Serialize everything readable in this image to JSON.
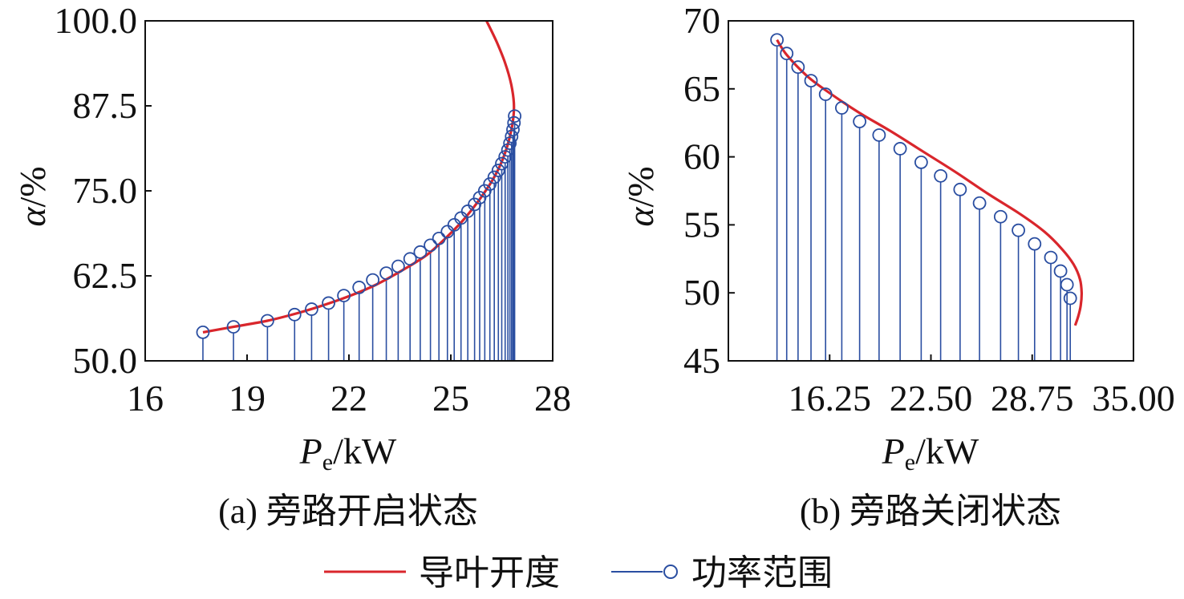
{
  "colors": {
    "curve": "#d9262c",
    "stem": "#2a4ea1",
    "axis": "#111111"
  },
  "legend": {
    "curve_label": "导叶开度",
    "stem_label": "功率范围",
    "curve_icon": "red-line-icon",
    "stem_icon": "blue-stem-circle-icon"
  },
  "chart_data": [
    {
      "type": "line",
      "caption": "(a) 旁路开启状态",
      "ylabel_var": "α",
      "ylabel_unit": "/%",
      "xlabel_var": "P",
      "xlabel_sub": "e",
      "xlabel_unit": "/kW",
      "xlim": [
        16,
        28
      ],
      "ylim": [
        50,
        100
      ],
      "xticks": [
        16,
        19,
        22,
        25,
        28
      ],
      "xtick_labels": [
        "16",
        "19",
        "22",
        "25",
        "28"
      ],
      "yticks": [
        50,
        62.5,
        75,
        87.5,
        100
      ],
      "ytick_labels": [
        "50.0",
        "62.5",
        "75.0",
        "87.5",
        "100.0"
      ],
      "grid": false,
      "series": [
        {
          "name": "导叶开度",
          "kind": "line",
          "points": [
            [
              17.7,
              54.2
            ],
            [
              18.6,
              55.0
            ],
            [
              19.6,
              55.9
            ],
            [
              20.4,
              56.9
            ],
            [
              21.2,
              58.1
            ],
            [
              22.0,
              59.5
            ],
            [
              22.8,
              61.2
            ],
            [
              23.6,
              63.4
            ],
            [
              24.3,
              65.6
            ],
            [
              24.9,
              68.3
            ],
            [
              25.4,
              70.9
            ],
            [
              25.9,
              74.1
            ],
            [
              26.3,
              77.2
            ],
            [
              26.6,
              80.6
            ],
            [
              26.8,
              84.4
            ],
            [
              26.86,
              87.5
            ],
            [
              26.78,
              90.6
            ],
            [
              26.6,
              93.8
            ],
            [
              26.35,
              96.9
            ],
            [
              26.05,
              100.0
            ]
          ]
        },
        {
          "name": "功率范围",
          "kind": "stem",
          "points": [
            [
              17.7,
              54.2
            ],
            [
              18.6,
              55.0
            ],
            [
              19.6,
              55.9
            ],
            [
              20.4,
              56.8
            ],
            [
              20.9,
              57.6
            ],
            [
              21.4,
              58.5
            ],
            [
              21.85,
              59.6
            ],
            [
              22.3,
              60.8
            ],
            [
              22.7,
              61.9
            ],
            [
              23.1,
              62.9
            ],
            [
              23.45,
              63.9
            ],
            [
              23.8,
              65.0
            ],
            [
              24.1,
              66.0
            ],
            [
              24.4,
              67.0
            ],
            [
              24.65,
              68.0
            ],
            [
              24.9,
              69.0
            ],
            [
              25.1,
              70.0
            ],
            [
              25.3,
              71.0
            ],
            [
              25.5,
              72.0
            ],
            [
              25.7,
              73.0
            ],
            [
              25.85,
              74.0
            ],
            [
              26.0,
              75.0
            ],
            [
              26.15,
              76.0
            ],
            [
              26.28,
              77.0
            ],
            [
              26.4,
              78.0
            ],
            [
              26.5,
              79.0
            ],
            [
              26.6,
              80.0
            ],
            [
              26.68,
              81.0
            ],
            [
              26.74,
              82.0
            ],
            [
              26.79,
              83.0
            ],
            [
              26.83,
              84.0
            ],
            [
              26.86,
              85.0
            ],
            [
              26.88,
              86.0
            ]
          ]
        }
      ]
    },
    {
      "type": "line",
      "caption": "(b) 旁路关闭状态",
      "ylabel_var": "α",
      "ylabel_unit": "/%",
      "xlabel_var": "P",
      "xlabel_sub": "e",
      "xlabel_unit": "/kW",
      "xlim": [
        10,
        35
      ],
      "ylim": [
        45,
        70
      ],
      "xticks": [
        16.25,
        22.5,
        28.75,
        35
      ],
      "xtick_labels": [
        "16.25",
        "22.50",
        "28.75",
        "35.00"
      ],
      "yticks": [
        45,
        50,
        55,
        60,
        65,
        70
      ],
      "ytick_labels": [
        "45",
        "50",
        "55",
        "60",
        "65",
        "70"
      ],
      "grid": false,
      "series": [
        {
          "name": "导叶开度",
          "kind": "line",
          "points": [
            [
              13.0,
              68.6
            ],
            [
              13.6,
              67.5
            ],
            [
              14.8,
              66.0
            ],
            [
              16.0,
              64.9
            ],
            [
              18.0,
              63.3
            ],
            [
              20.0,
              61.9
            ],
            [
              22.0,
              60.4
            ],
            [
              24.0,
              58.9
            ],
            [
              26.0,
              57.3
            ],
            [
              28.0,
              55.8
            ],
            [
              29.5,
              54.5
            ],
            [
              30.6,
              53.2
            ],
            [
              31.3,
              52.1
            ],
            [
              31.7,
              51.0
            ],
            [
              31.8,
              50.0
            ],
            [
              31.75,
              49.1
            ],
            [
              31.6,
              48.3
            ],
            [
              31.4,
              47.6
            ]
          ]
        },
        {
          "name": "功率范围",
          "kind": "stem",
          "points": [
            [
              13.0,
              68.6
            ],
            [
              13.6,
              67.6
            ],
            [
              14.3,
              66.6
            ],
            [
              15.1,
              65.6
            ],
            [
              16.0,
              64.6
            ],
            [
              17.0,
              63.6
            ],
            [
              18.1,
              62.6
            ],
            [
              19.3,
              61.6
            ],
            [
              20.6,
              60.6
            ],
            [
              21.9,
              59.6
            ],
            [
              23.1,
              58.6
            ],
            [
              24.3,
              57.6
            ],
            [
              25.5,
              56.6
            ],
            [
              26.8,
              55.6
            ],
            [
              27.9,
              54.6
            ],
            [
              28.9,
              53.6
            ],
            [
              29.9,
              52.6
            ],
            [
              30.5,
              51.6
            ],
            [
              30.9,
              50.6
            ],
            [
              31.1,
              49.6
            ]
          ]
        }
      ]
    }
  ]
}
